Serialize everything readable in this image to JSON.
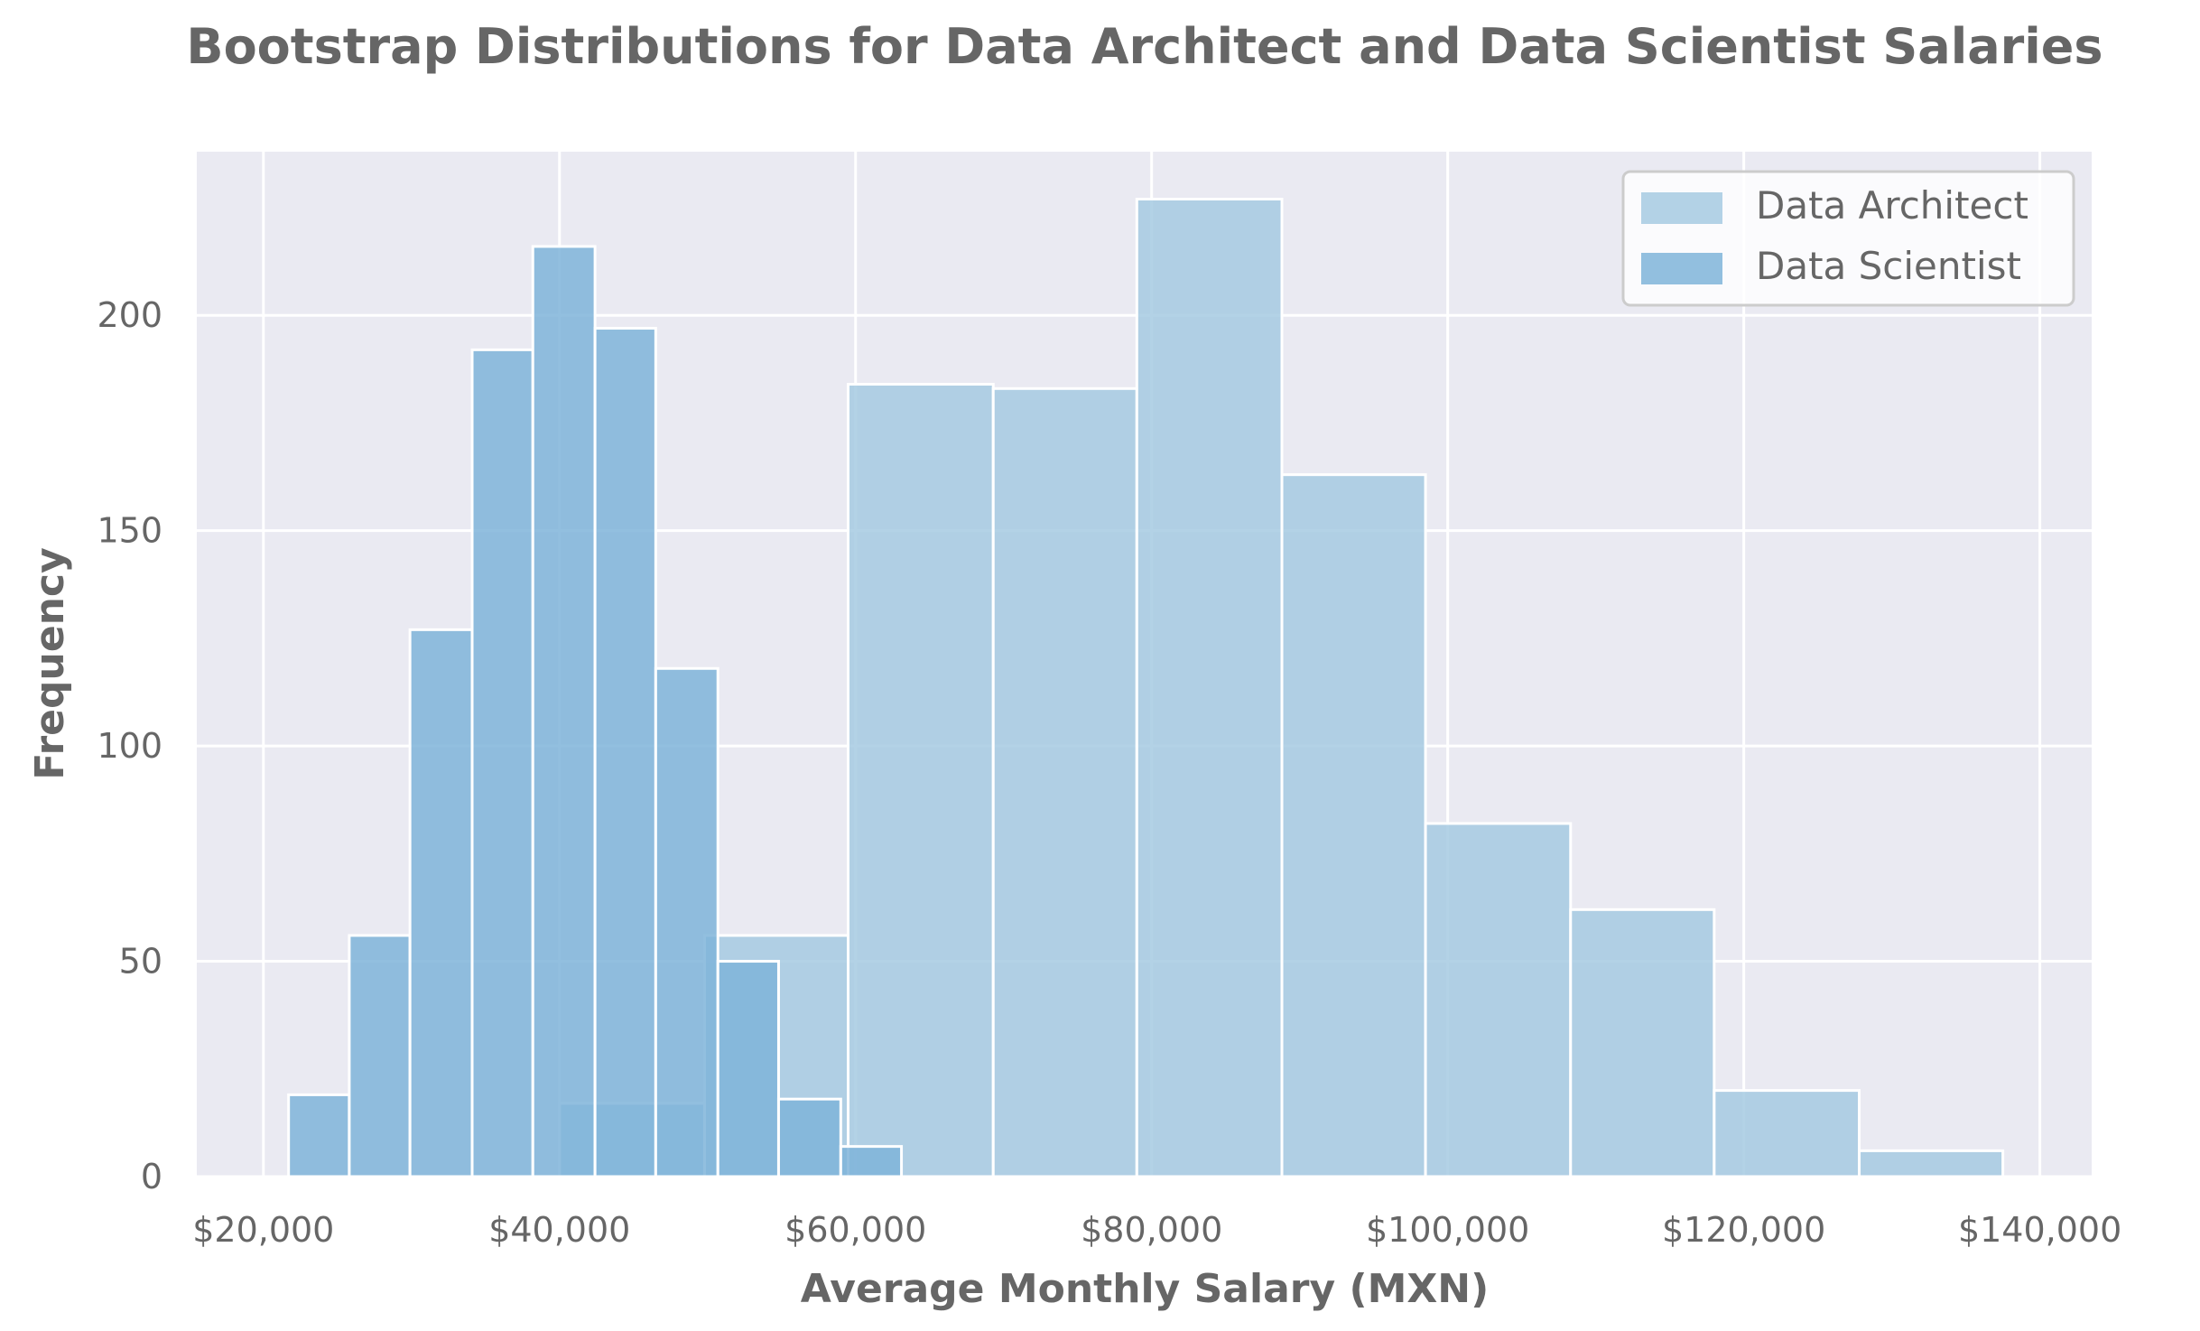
{
  "chart_data": {
    "type": "histogram",
    "title": "Bootstrap Distributions for Data Architect and Data Scientist Salaries",
    "xlabel": "Average Monthly Salary (MXN)",
    "ylabel": "Frequency",
    "xlim": [
      15500,
      143500
    ],
    "ylim": [
      0,
      238
    ],
    "x_ticks": [
      20000,
      40000,
      60000,
      80000,
      100000,
      120000,
      140000
    ],
    "x_tick_labels": [
      "$20,000",
      "$40,000",
      "$60,000",
      "$80,000",
      "$100,000",
      "$120,000",
      "$140,000"
    ],
    "y_ticks": [
      0,
      50,
      100,
      150,
      200
    ],
    "y_tick_labels": [
      "0",
      "50",
      "100",
      "150",
      "200"
    ],
    "grid": true,
    "legend_position": "top-right",
    "background_color": "#eaeaf2",
    "series": [
      {
        "name": "Data Architect",
        "color": "#a6cae2",
        "bins": [
          {
            "x0": 40000,
            "x1": 49800,
            "count": 17
          },
          {
            "x0": 49800,
            "x1": 59500,
            "count": 56
          },
          {
            "x0": 59500,
            "x1": 69300,
            "count": 184
          },
          {
            "x0": 69300,
            "x1": 79000,
            "count": 183
          },
          {
            "x0": 79000,
            "x1": 88800,
            "count": 227
          },
          {
            "x0": 88800,
            "x1": 98500,
            "count": 163
          },
          {
            "x0": 98500,
            "x1": 108300,
            "count": 82
          },
          {
            "x0": 108300,
            "x1": 118000,
            "count": 62
          },
          {
            "x0": 118000,
            "x1": 127800,
            "count": 20
          },
          {
            "x0": 127800,
            "x1": 137500,
            "count": 6
          }
        ]
      },
      {
        "name": "Data Scientist",
        "color": "#7fb4d9",
        "bins": [
          {
            "x0": 21700,
            "x1": 25800,
            "count": 19
          },
          {
            "x0": 25800,
            "x1": 29900,
            "count": 56
          },
          {
            "x0": 29900,
            "x1": 34100,
            "count": 127
          },
          {
            "x0": 34100,
            "x1": 38200,
            "count": 192
          },
          {
            "x0": 38200,
            "x1": 42400,
            "count": 216
          },
          {
            "x0": 42400,
            "x1": 46500,
            "count": 197
          },
          {
            "x0": 46500,
            "x1": 50700,
            "count": 118
          },
          {
            "x0": 50700,
            "x1": 54800,
            "count": 50
          },
          {
            "x0": 54800,
            "x1": 59000,
            "count": 18
          },
          {
            "x0": 59000,
            "x1": 63100,
            "count": 7
          }
        ]
      }
    ]
  }
}
